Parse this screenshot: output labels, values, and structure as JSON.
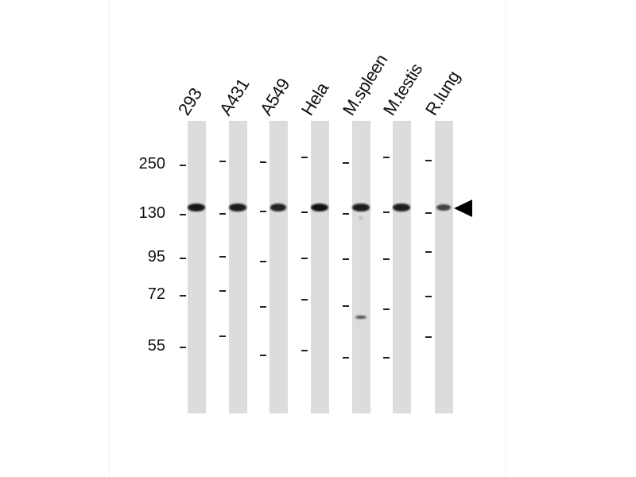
{
  "lanes": [
    {
      "label": "293",
      "band_intensity": 0.95
    },
    {
      "label": "A431",
      "band_intensity": 0.9
    },
    {
      "label": "A549",
      "band_intensity": 0.85
    },
    {
      "label": "Hela",
      "band_intensity": 1.0
    },
    {
      "label": "M.spleen",
      "band_intensity": 0.9,
      "extra_bands_kda": [
        125,
        62
      ]
    },
    {
      "label": "M.testis",
      "band_intensity": 0.9
    },
    {
      "label": "R.lung",
      "band_intensity": 0.6
    }
  ],
  "markers": [
    "250",
    "130",
    "95",
    "72",
    "55"
  ],
  "target_arrow": "arrow-left-icon"
}
